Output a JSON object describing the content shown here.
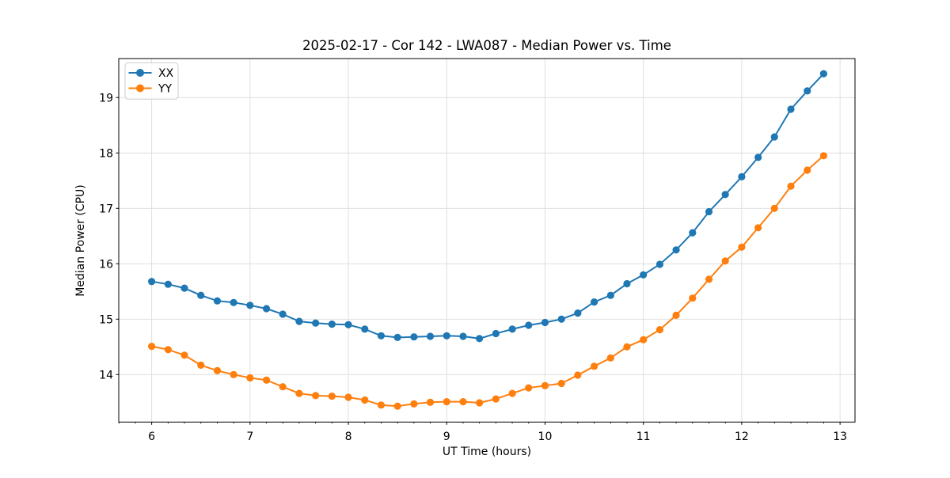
{
  "figure": {
    "background": "#ffffff",
    "spine_color": "#000000",
    "grid_color": "#dcdcdc"
  },
  "chart_data": {
    "type": "line",
    "title": "2025-02-17 - Cor 142 - LWA087 - Median Power vs. Time",
    "xlabel": "UT Time (hours)",
    "ylabel": "Median Power (CPU)",
    "xlim": [
      5.665,
      13.152
    ],
    "ylim": [
      13.143,
      19.704
    ],
    "x_major_ticks": [
      6,
      7,
      8,
      9,
      10,
      11,
      12,
      13
    ],
    "y_major_ticks": [
      14,
      15,
      16,
      17,
      18,
      19
    ],
    "x_minor_tick_step": 0.1667,
    "grid": true,
    "legend_position": "upper left",
    "x": [
      6.0,
      6.167,
      6.333,
      6.5,
      6.667,
      6.833,
      7.0,
      7.167,
      7.333,
      7.5,
      7.667,
      7.833,
      8.0,
      8.167,
      8.333,
      8.5,
      8.667,
      8.833,
      9.0,
      9.167,
      9.333,
      9.5,
      9.667,
      9.833,
      10.0,
      10.167,
      10.333,
      10.5,
      10.667,
      10.833,
      11.0,
      11.167,
      11.333,
      11.5,
      11.667,
      11.833,
      12.0,
      12.167,
      12.333,
      12.5,
      12.667,
      12.833
    ],
    "series": [
      {
        "name": "XX",
        "color": "#1f77b4",
        "values": [
          15.68,
          15.63,
          15.56,
          15.43,
          15.33,
          15.3,
          15.25,
          15.19,
          15.09,
          14.96,
          14.93,
          14.91,
          14.9,
          14.82,
          14.7,
          14.67,
          14.68,
          14.69,
          14.7,
          14.69,
          14.65,
          14.74,
          14.82,
          14.89,
          14.94,
          15.0,
          15.11,
          15.31,
          15.43,
          15.64,
          15.8,
          15.99,
          16.25,
          16.56,
          16.94,
          17.25,
          17.57,
          17.92,
          18.29,
          18.79,
          19.12,
          19.43
        ]
      },
      {
        "name": "YY",
        "color": "#ff7f0e",
        "values": [
          14.51,
          14.45,
          14.35,
          14.17,
          14.07,
          14.0,
          13.94,
          13.9,
          13.78,
          13.66,
          13.62,
          13.61,
          13.59,
          13.54,
          13.45,
          13.43,
          13.47,
          13.5,
          13.51,
          13.51,
          13.49,
          13.56,
          13.66,
          13.76,
          13.8,
          13.84,
          13.99,
          14.15,
          14.3,
          14.5,
          14.63,
          14.81,
          15.07,
          15.38,
          15.72,
          16.05,
          16.3,
          16.65,
          17.0,
          17.4,
          17.69,
          17.95
        ]
      }
    ]
  }
}
